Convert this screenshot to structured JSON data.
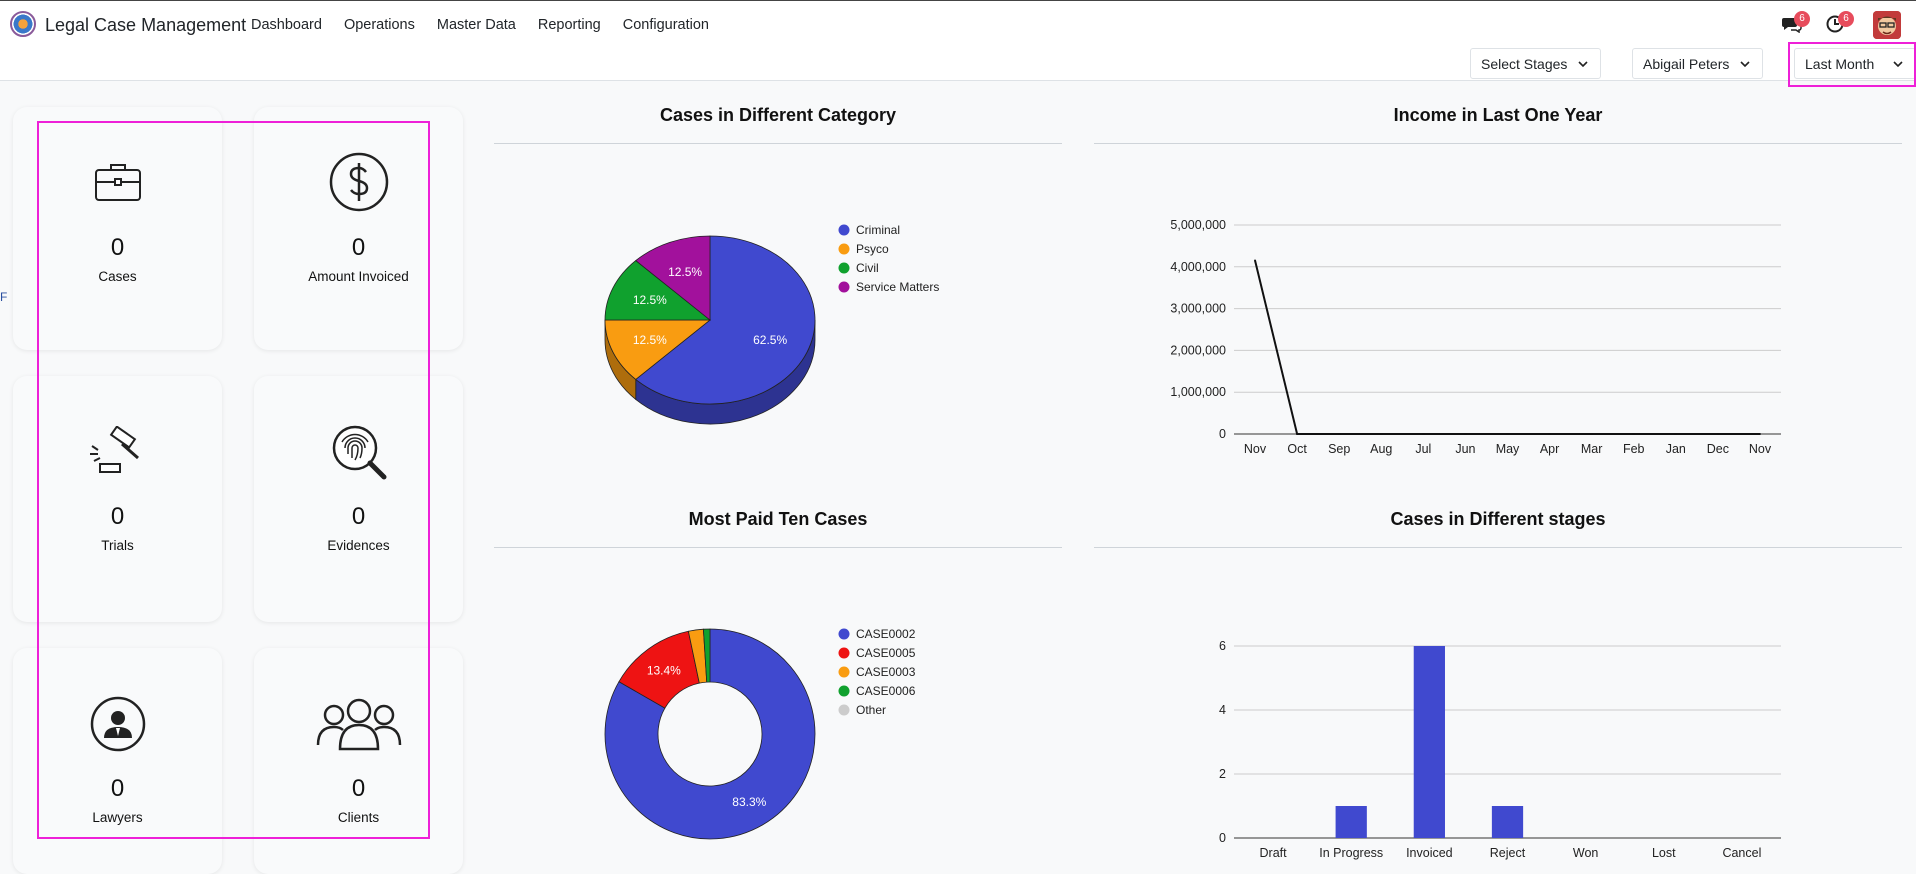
{
  "app": {
    "title": "Legal Case Management",
    "menu": [
      "Dashboard",
      "Operations",
      "Master Data",
      "Reporting",
      "Configuration"
    ],
    "notifications": {
      "messages_count": "6",
      "activities_count": "6"
    }
  },
  "filters": {
    "stage": "Select Stages",
    "user": "Abigail Peters",
    "period": "Last Month"
  },
  "cards": [
    {
      "label": "Cases",
      "value": "0",
      "icon": "briefcase-icon"
    },
    {
      "label": "Amount Invoiced",
      "value": "0",
      "icon": "dollar-icon"
    },
    {
      "label": "Trials",
      "value": "0",
      "icon": "gavel-icon"
    },
    {
      "label": "Evidences",
      "value": "0",
      "icon": "fingerprint-search-icon"
    },
    {
      "label": "Lawyers",
      "value": "0",
      "icon": "lawyer-icon"
    },
    {
      "label": "Clients",
      "value": "0",
      "icon": "clients-icon"
    }
  ],
  "stray_text": "F",
  "chart_data": [
    {
      "type": "pie",
      "title": "Cases in Different Category",
      "categories": [
        "Criminal",
        "Psyco",
        "Civil",
        "Service Matters"
      ],
      "values": [
        62.5,
        12.5,
        12.5,
        12.5
      ],
      "labels": [
        "62.5%",
        "12.5%",
        "12.5%",
        "12.5%"
      ],
      "colors": [
        "#4049cf",
        "#f99c11",
        "#10a12e",
        "#a2119c"
      ],
      "legend": "right"
    },
    {
      "type": "line",
      "title": "Income in Last One Year",
      "categories": [
        "Nov",
        "Oct",
        "Sep",
        "Aug",
        "Jul",
        "Jun",
        "May",
        "Apr",
        "Mar",
        "Feb",
        "Jan",
        "Dec",
        "Nov"
      ],
      "values": [
        4150000,
        0,
        0,
        0,
        0,
        0,
        0,
        0,
        0,
        0,
        0,
        0,
        0
      ],
      "yticks": [
        "0",
        "1,000,000",
        "2,000,000",
        "3,000,000",
        "4,000,000",
        "5,000,000"
      ],
      "ylim": [
        0,
        5000000
      ],
      "grid": true
    },
    {
      "type": "pie",
      "title": "Most Paid Ten Cases",
      "categories": [
        "CASE0002",
        "CASE0005",
        "CASE0003",
        "CASE0006",
        "Other"
      ],
      "values": [
        83.3,
        13.4,
        2.3,
        1.0,
        0.0
      ],
      "labels": [
        "83.3%",
        "13.4%",
        "",
        "",
        ""
      ],
      "colors": [
        "#4049cf",
        "#ee1313",
        "#f99c11",
        "#10a12e",
        "#cccccc"
      ],
      "legend": "right"
    },
    {
      "type": "bar",
      "title": "Cases in Different stages",
      "categories": [
        "Draft",
        "In Progress",
        "Invoiced",
        "Reject",
        "Won",
        "Lost",
        "Cancel"
      ],
      "values": [
        0,
        1,
        6,
        1,
        0,
        0,
        0
      ],
      "yticks": [
        "0",
        "2",
        "4",
        "6"
      ],
      "ylim": [
        0,
        6.5
      ],
      "color": "#4049cf",
      "grid": true
    }
  ]
}
